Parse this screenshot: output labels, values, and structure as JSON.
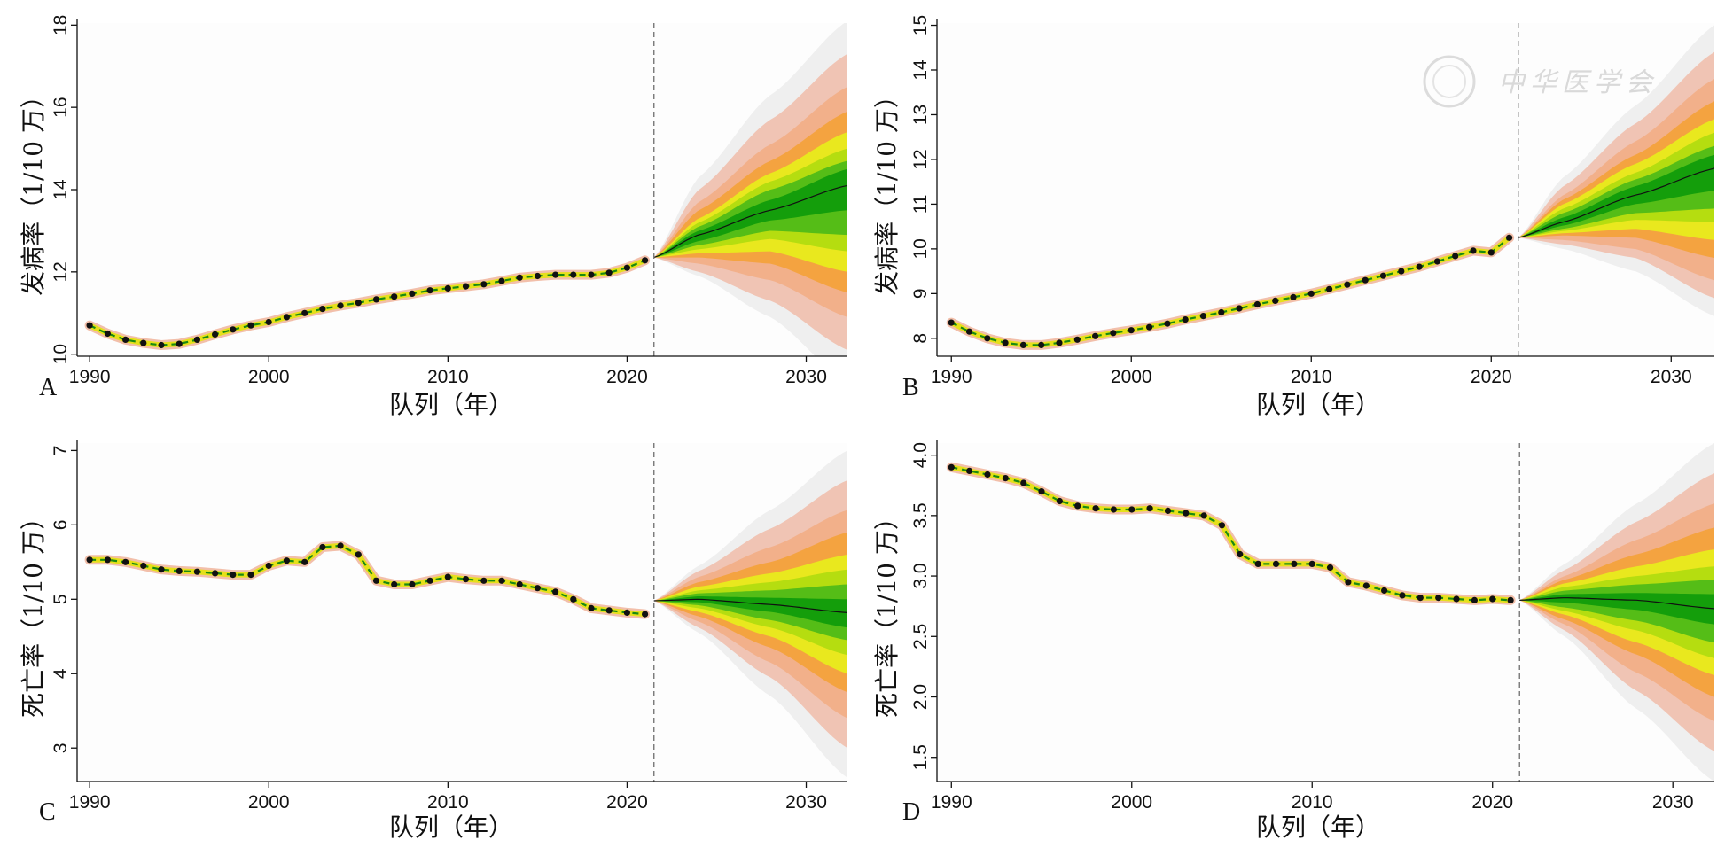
{
  "watermark": {
    "text": "中华医学会",
    "color": "#d9d9d9"
  },
  "fan_colors": [
    "#efefef",
    "#f0c4b4",
    "#f2b08a",
    "#f4a340",
    "#e9e81e",
    "#b5dd10",
    "#55bd17",
    "#149e0b"
  ],
  "chart_data": [
    {
      "panel": "A",
      "type": "area",
      "xlabel": "队列（年）",
      "ylabel": "发病率（1/10 万）",
      "x_ticks": [
        1990,
        2000,
        2010,
        2020,
        2030
      ],
      "y_ticks": [
        10,
        12,
        14,
        16,
        18
      ],
      "ylim": [
        9.95,
        18.05
      ],
      "xlim": [
        1989.3,
        2032.3
      ],
      "forecast_start": 2021.5,
      "observed": {
        "x": [
          1990,
          1991,
          1992,
          1993,
          1994,
          1995,
          1996,
          1997,
          1998,
          1999,
          2000,
          2001,
          2002,
          2003,
          2004,
          2005,
          2006,
          2007,
          2008,
          2009,
          2010,
          2011,
          2012,
          2013,
          2014,
          2015,
          2016,
          2017,
          2018,
          2019,
          2020,
          2021
        ],
        "y": [
          10.7,
          10.5,
          10.35,
          10.27,
          10.22,
          10.25,
          10.35,
          10.48,
          10.6,
          10.7,
          10.78,
          10.9,
          11.0,
          11.1,
          11.18,
          11.25,
          11.33,
          11.4,
          11.47,
          11.55,
          11.6,
          11.65,
          11.7,
          11.78,
          11.86,
          11.9,
          11.93,
          11.93,
          11.93,
          11.98,
          12.1,
          12.28
        ]
      },
      "forecast": {
        "x": [
          2021.5,
          2024,
          2028,
          2032.3
        ],
        "median": [
          12.35,
          12.9,
          13.5,
          14.1
        ],
        "bands": [
          {
            "level": 0.95,
            "lower": [
              12.35,
              11.9,
              10.9,
              9.3
            ],
            "upper": [
              12.35,
              14.3,
              16.3,
              18.1
            ]
          },
          {
            "level": 0.9,
            "lower": [
              12.35,
              12.0,
              11.3,
              10.1
            ],
            "upper": [
              12.35,
              14.0,
              15.7,
              17.3
            ]
          },
          {
            "level": 0.8,
            "lower": [
              12.35,
              12.2,
              11.8,
              10.9
            ],
            "upper": [
              12.35,
              13.7,
              15.1,
              16.5
            ]
          },
          {
            "level": 0.7,
            "lower": [
              12.35,
              12.35,
              12.2,
              11.5
            ],
            "upper": [
              12.35,
              13.5,
              14.7,
              15.9
            ]
          },
          {
            "level": 0.6,
            "lower": [
              12.35,
              12.45,
              12.5,
              12.0
            ],
            "upper": [
              12.35,
              13.3,
              14.4,
              15.4
            ]
          },
          {
            "level": 0.5,
            "lower": [
              12.35,
              12.55,
              12.8,
              12.5
            ],
            "upper": [
              12.35,
              13.2,
              14.2,
              15.0
            ]
          },
          {
            "level": 0.4,
            "lower": [
              12.35,
              12.65,
              13.0,
              12.9
            ],
            "upper": [
              12.35,
              13.1,
              14.0,
              14.7
            ]
          },
          {
            "level": 0.2,
            "lower": [
              12.35,
              12.75,
              13.25,
              13.5
            ],
            "upper": [
              12.35,
              13.0,
              13.75,
              14.5
            ]
          }
        ]
      }
    },
    {
      "panel": "B",
      "type": "area",
      "xlabel": "队列（年）",
      "ylabel": "发病率（1/10 万）",
      "x_ticks": [
        1990,
        2000,
        2010,
        2020,
        2030
      ],
      "y_ticks": [
        8,
        9,
        10,
        11,
        12,
        13,
        14,
        15
      ],
      "ylim": [
        7.6,
        15.05
      ],
      "xlim": [
        1989.2,
        2032.4
      ],
      "forecast_start": 2021.5,
      "observed": {
        "x": [
          1990,
          1991,
          1992,
          1993,
          1994,
          1995,
          1996,
          1997,
          1998,
          1999,
          2000,
          2001,
          2002,
          2003,
          2004,
          2005,
          2006,
          2007,
          2008,
          2009,
          2010,
          2011,
          2012,
          2013,
          2014,
          2015,
          2016,
          2017,
          2018,
          2019,
          2020,
          2021
        ],
        "y": [
          8.35,
          8.15,
          8.0,
          7.9,
          7.85,
          7.85,
          7.9,
          7.97,
          8.05,
          8.12,
          8.18,
          8.25,
          8.33,
          8.42,
          8.5,
          8.58,
          8.67,
          8.76,
          8.84,
          8.92,
          9.0,
          9.1,
          9.2,
          9.3,
          9.4,
          9.5,
          9.6,
          9.72,
          9.84,
          9.96,
          9.92,
          10.25
        ]
      },
      "forecast": {
        "x": [
          2021.5,
          2024,
          2028,
          2032.4
        ],
        "median": [
          10.25,
          10.6,
          11.2,
          11.8
        ],
        "bands": [
          {
            "level": 0.95,
            "lower": [
              10.25,
              10.0,
              9.5,
              8.5
            ],
            "upper": [
              10.25,
              11.6,
              13.2,
              15.0
            ]
          },
          {
            "level": 0.9,
            "lower": [
              10.25,
              10.1,
              9.8,
              8.9
            ],
            "upper": [
              10.25,
              11.4,
              12.8,
              14.4
            ]
          },
          {
            "level": 0.8,
            "lower": [
              10.25,
              10.2,
              10.0,
              9.3
            ],
            "upper": [
              10.25,
              11.2,
              12.4,
              13.8
            ]
          },
          {
            "level": 0.7,
            "lower": [
              10.25,
              10.3,
              10.25,
              9.8
            ],
            "upper": [
              10.25,
              11.1,
              12.1,
              13.3
            ]
          },
          {
            "level": 0.6,
            "lower": [
              10.25,
              10.35,
              10.45,
              10.2
            ],
            "upper": [
              10.25,
              11.0,
              11.9,
              12.9
            ]
          },
          {
            "level": 0.5,
            "lower": [
              10.25,
              10.4,
              10.65,
              10.6
            ],
            "upper": [
              10.25,
              10.9,
              11.7,
              12.6
            ]
          },
          {
            "level": 0.4,
            "lower": [
              10.25,
              10.45,
              10.8,
              10.9
            ],
            "upper": [
              10.25,
              10.8,
              11.55,
              12.3
            ]
          },
          {
            "level": 0.2,
            "lower": [
              10.25,
              10.52,
              11.0,
              11.3
            ],
            "upper": [
              10.25,
              10.7,
              11.4,
              12.1
            ]
          }
        ]
      }
    },
    {
      "panel": "C",
      "type": "area",
      "xlabel": "队列（年）",
      "ylabel": "死亡率（1/10 万）",
      "x_ticks": [
        1990,
        2000,
        2010,
        2020,
        2030
      ],
      "y_ticks": [
        3,
        4,
        5,
        6,
        7
      ],
      "ylim": [
        2.55,
        7.1
      ],
      "xlim": [
        1989.3,
        2032.3
      ],
      "forecast_start": 2021.5,
      "observed": {
        "x": [
          1990,
          1991,
          1992,
          1993,
          1994,
          1995,
          1996,
          1997,
          1998,
          1999,
          2000,
          2001,
          2002,
          2003,
          2004,
          2005,
          2006,
          2007,
          2008,
          2009,
          2010,
          2011,
          2012,
          2013,
          2014,
          2015,
          2016,
          2017,
          2018,
          2019,
          2020,
          2021
        ],
        "y": [
          5.53,
          5.53,
          5.5,
          5.45,
          5.4,
          5.38,
          5.37,
          5.35,
          5.33,
          5.33,
          5.45,
          5.52,
          5.5,
          5.7,
          5.72,
          5.6,
          5.25,
          5.2,
          5.2,
          5.25,
          5.3,
          5.27,
          5.25,
          5.25,
          5.2,
          5.15,
          5.1,
          5.0,
          4.88,
          4.85,
          4.82,
          4.8
        ]
      },
      "forecast": {
        "x": [
          2021.5,
          2024,
          2028,
          2032.3
        ],
        "median": [
          4.98,
          5.0,
          4.93,
          4.82
        ],
        "bands": [
          {
            "level": 0.95,
            "lower": [
              4.98,
              4.55,
              3.7,
              2.6
            ],
            "upper": [
              4.98,
              5.45,
              6.2,
              7.0
            ]
          },
          {
            "level": 0.9,
            "lower": [
              4.98,
              4.62,
              3.95,
              3.0
            ],
            "upper": [
              4.98,
              5.38,
              5.95,
              6.6
            ]
          },
          {
            "level": 0.8,
            "lower": [
              4.98,
              4.7,
              4.15,
              3.4
            ],
            "upper": [
              4.98,
              5.3,
              5.7,
              6.2
            ]
          },
          {
            "level": 0.7,
            "lower": [
              4.98,
              4.77,
              4.35,
              3.75
            ],
            "upper": [
              4.98,
              5.23,
              5.5,
              5.9
            ]
          },
          {
            "level": 0.6,
            "lower": [
              4.98,
              4.83,
              4.5,
              4.0
            ],
            "upper": [
              4.98,
              5.17,
              5.35,
              5.6
            ]
          },
          {
            "level": 0.5,
            "lower": [
              4.98,
              4.88,
              4.62,
              4.25
            ],
            "upper": [
              4.98,
              5.12,
              5.23,
              5.4
            ]
          },
          {
            "level": 0.4,
            "lower": [
              4.98,
              4.92,
              4.72,
              4.45
            ],
            "upper": [
              4.98,
              5.08,
              5.12,
              5.2
            ]
          },
          {
            "level": 0.2,
            "lower": [
              4.98,
              4.96,
              4.83,
              4.62
            ],
            "upper": [
              4.98,
              5.04,
              5.02,
              5.0
            ]
          }
        ]
      }
    },
    {
      "panel": "D",
      "type": "area",
      "xlabel": "队列（年）",
      "ylabel": "死亡率（1/10 万）",
      "x_ticks": [
        1990,
        2000,
        2010,
        2020,
        2030
      ],
      "y_ticks": [
        1.5,
        2.0,
        2.5,
        3.0,
        3.5,
        4.0
      ],
      "y_tick_labels": [
        "1.5",
        "2.0",
        "2.5",
        "3.0",
        "3.5",
        "4.0"
      ],
      "ylim": [
        1.3,
        4.1
      ],
      "xlim": [
        1989.2,
        2032.3
      ],
      "forecast_start": 2021.5,
      "observed": {
        "x": [
          1990,
          1991,
          1992,
          1993,
          1994,
          1995,
          1996,
          1997,
          1998,
          1999,
          2000,
          2001,
          2002,
          2003,
          2004,
          2005,
          2006,
          2007,
          2008,
          2009,
          2010,
          2011,
          2012,
          2013,
          2014,
          2015,
          2016,
          2017,
          2018,
          2019,
          2020,
          2021
        ],
        "y": [
          3.9,
          3.87,
          3.84,
          3.81,
          3.77,
          3.7,
          3.62,
          3.58,
          3.56,
          3.55,
          3.55,
          3.56,
          3.54,
          3.52,
          3.5,
          3.42,
          3.18,
          3.1,
          3.1,
          3.1,
          3.1,
          3.07,
          2.95,
          2.92,
          2.88,
          2.84,
          2.82,
          2.82,
          2.81,
          2.8,
          2.81,
          2.8
        ]
      },
      "forecast": {
        "x": [
          2021.5,
          2024,
          2028,
          2032.3
        ],
        "median": [
          2.8,
          2.82,
          2.8,
          2.73
        ],
        "bands": [
          {
            "level": 0.95,
            "lower": [
              2.8,
              2.5,
              1.9,
              1.3
            ],
            "upper": [
              2.8,
              3.1,
              3.6,
              4.1
            ]
          },
          {
            "level": 0.9,
            "lower": [
              2.8,
              2.55,
              2.05,
              1.55
            ],
            "upper": [
              2.8,
              3.05,
              3.45,
              3.85
            ]
          },
          {
            "level": 0.8,
            "lower": [
              2.8,
              2.6,
              2.2,
              1.8
            ],
            "upper": [
              2.8,
              3.0,
              3.3,
              3.6
            ]
          },
          {
            "level": 0.7,
            "lower": [
              2.8,
              2.64,
              2.35,
              2.0
            ],
            "upper": [
              2.8,
              2.97,
              3.18,
              3.4
            ]
          },
          {
            "level": 0.6,
            "lower": [
              2.8,
              2.68,
              2.45,
              2.18
            ],
            "upper": [
              2.8,
              2.94,
              3.08,
              3.22
            ]
          },
          {
            "level": 0.5,
            "lower": [
              2.8,
              2.71,
              2.55,
              2.32
            ],
            "upper": [
              2.8,
              2.91,
              3.0,
              3.08
            ]
          },
          {
            "level": 0.4,
            "lower": [
              2.8,
              2.74,
              2.63,
              2.45
            ],
            "upper": [
              2.8,
              2.88,
              2.93,
              2.97
            ]
          },
          {
            "level": 0.2,
            "lower": [
              2.8,
              2.78,
              2.72,
              2.6
            ],
            "upper": [
              2.8,
              2.85,
              2.86,
              2.85
            ]
          }
        ]
      }
    }
  ]
}
